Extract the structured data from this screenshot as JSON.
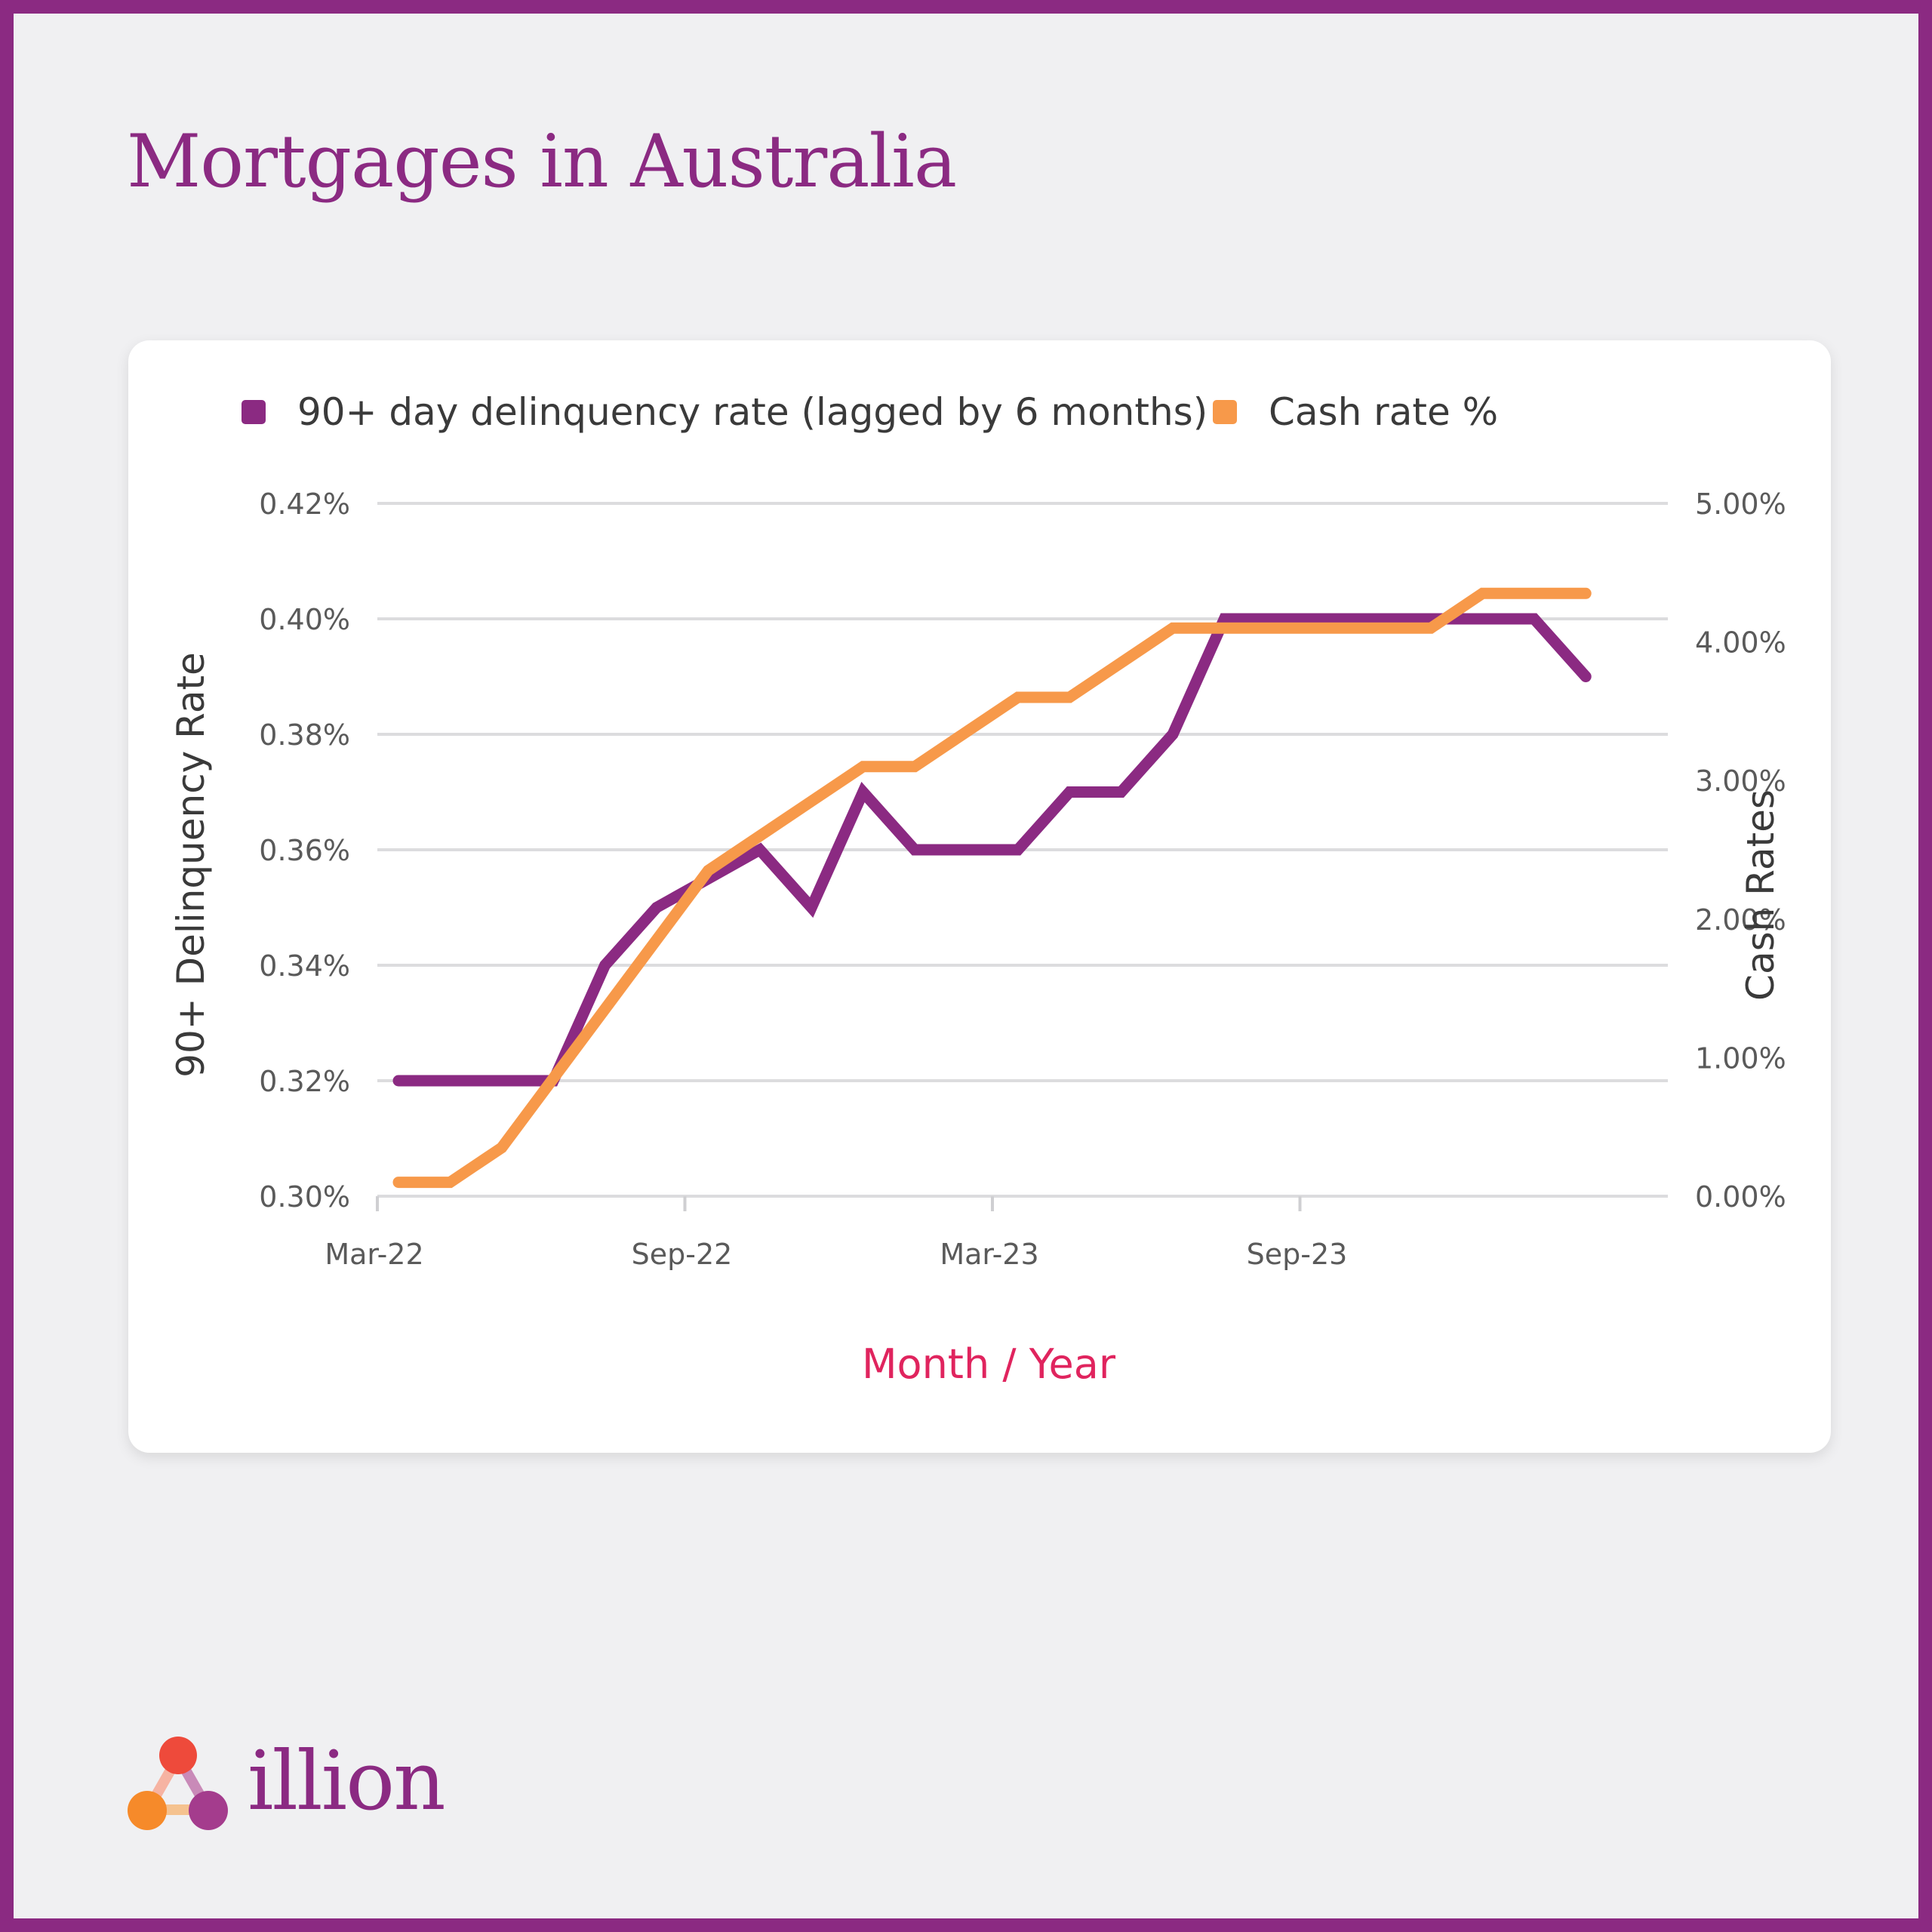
{
  "page": {
    "title": "Mortgages in Australia",
    "brand": "illion"
  },
  "colors": {
    "brand": "#8B2A82",
    "delinquency": "#8B2A82",
    "cash_rate": "#F7994A",
    "xlabel": "#E0245E",
    "background": "#F0F0F2"
  },
  "chart_data": {
    "type": "line",
    "x": [
      "Mar-22",
      "Apr-22",
      "May-22",
      "Jun-22",
      "Jul-22",
      "Aug-22",
      "Sep-22",
      "Oct-22",
      "Nov-22",
      "Dec-22",
      "Jan-23",
      "Feb-23",
      "Mar-23",
      "Apr-23",
      "May-23",
      "Jun-23",
      "Jul-23",
      "Aug-23",
      "Sep-23",
      "Oct-23",
      "Nov-23",
      "Dec-23",
      "Jan-24",
      "Feb-24"
    ],
    "tick_labels": [
      "Mar-22",
      "Sep-22",
      "Mar-23",
      "Sep-23"
    ],
    "series": [
      {
        "name": "90+ day delinquency rate (lagged by 6 months)",
        "axis": "left",
        "color": "#8B2A82",
        "values": [
          0.32,
          0.32,
          0.32,
          0.32,
          0.34,
          0.35,
          0.355,
          0.36,
          0.35,
          0.37,
          0.36,
          0.36,
          0.36,
          0.37,
          0.37,
          0.38,
          0.4,
          0.4,
          0.4,
          0.4,
          0.4,
          0.4,
          0.4,
          0.39
        ]
      },
      {
        "name": "Cash rate %",
        "axis": "right",
        "color": "#F7994A",
        "values": [
          0.1,
          0.1,
          0.35,
          0.85,
          1.35,
          1.85,
          2.35,
          2.6,
          2.85,
          3.1,
          3.1,
          3.35,
          3.6,
          3.6,
          3.85,
          4.1,
          4.1,
          4.1,
          4.1,
          4.1,
          4.1,
          4.35,
          4.35,
          4.35
        ]
      }
    ],
    "y_left": {
      "label": "90+ Delinquency Rate",
      "ylim": [
        0.3,
        0.42
      ],
      "ticks": [
        "0.30%",
        "0.32%",
        "0.34%",
        "0.36%",
        "0.38%",
        "0.40%",
        "0.42%"
      ],
      "tick_values": [
        0.3,
        0.32,
        0.34,
        0.36,
        0.38,
        0.4,
        0.42
      ]
    },
    "y_right": {
      "label": "Cash Rates",
      "ylim": [
        0,
        5
      ],
      "ticks": [
        "0.00%",
        "1.00%",
        "2.00%",
        "3.00%",
        "4.00%",
        "5.00%"
      ],
      "tick_values": [
        0,
        1,
        2,
        3,
        4,
        5
      ]
    },
    "xlabel": "Month / Year",
    "grid": true,
    "legend_position": "top"
  }
}
